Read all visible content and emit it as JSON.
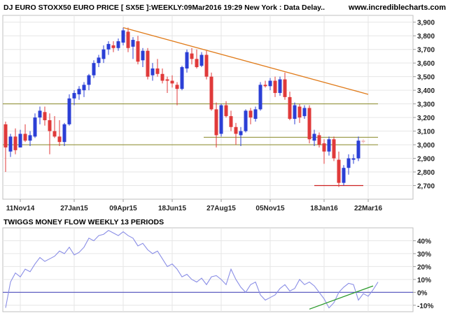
{
  "header": {
    "title": "DJ EURO STOXX50 EURO PRICE [ SX5E ]:WEEKLY:09Mar2016 19:29 New York : Data Delay..",
    "site": "www.incrediblecharts.com"
  },
  "colors": {
    "up": "#2b3fd6",
    "down": "#e03a3a",
    "trendline": "#e07b1a",
    "horizontal": "#8a8a28",
    "low_line": "#cc2020",
    "indicator": "#8a8ee6",
    "indicator_trend": "#2a9a2a",
    "grid": "#e6e6e6",
    "axis_text": "#222222"
  },
  "chart_data": [
    {
      "type": "candlestick",
      "title": "DJ EURO STOXX50 EURO PRICE [ SX5E ]:WEEKLY:09Mar2016 19:29 New York : Data Delay..",
      "ylim": [
        2600,
        3950
      ],
      "y_ticks": [
        "2,700",
        "2,800",
        "2,900",
        "3,000",
        "3,100",
        "3,200",
        "3,300",
        "3,400",
        "3,500",
        "3,600",
        "3,700",
        "3,800",
        "3,900"
      ],
      "y_tick_values": [
        2700,
        2800,
        2900,
        3000,
        3100,
        3200,
        3300,
        3400,
        3500,
        3600,
        3700,
        3800,
        3900
      ],
      "x_ticks": [
        "11Nov14",
        "27Jan15",
        "09Apr15",
        "18Jun15",
        "27Aug15",
        "05Nov15",
        "18Jan16",
        "22Mar16"
      ],
      "x_tick_week_index": [
        3,
        14,
        24,
        34,
        44,
        54,
        65,
        74
      ],
      "grid": true,
      "candles": [
        {
          "o": 3150,
          "h": 3170,
          "l": 2800,
          "c": 2980
        },
        {
          "o": 2950,
          "h": 3080,
          "l": 2910,
          "c": 3060
        },
        {
          "o": 3060,
          "h": 3120,
          "l": 2930,
          "c": 2960
        },
        {
          "o": 2980,
          "h": 3110,
          "l": 2980,
          "c": 3080
        },
        {
          "o": 3080,
          "h": 3150,
          "l": 3020,
          "c": 3030
        },
        {
          "o": 3030,
          "h": 3100,
          "l": 2990,
          "c": 3070
        },
        {
          "o": 3060,
          "h": 3230,
          "l": 3050,
          "c": 3200
        },
        {
          "o": 3200,
          "h": 3280,
          "l": 3150,
          "c": 3250
        },
        {
          "o": 3240,
          "h": 3280,
          "l": 3140,
          "c": 3180
        },
        {
          "o": 3180,
          "h": 3230,
          "l": 2930,
          "c": 3100
        },
        {
          "o": 3100,
          "h": 3210,
          "l": 3050,
          "c": 3060
        },
        {
          "o": 3060,
          "h": 3180,
          "l": 2990,
          "c": 3020
        },
        {
          "o": 3020,
          "h": 3160,
          "l": 2990,
          "c": 3150
        },
        {
          "o": 3150,
          "h": 3370,
          "l": 3140,
          "c": 3340
        },
        {
          "o": 3340,
          "h": 3400,
          "l": 3290,
          "c": 3380
        },
        {
          "o": 3370,
          "h": 3430,
          "l": 3330,
          "c": 3410
        },
        {
          "o": 3400,
          "h": 3460,
          "l": 3350,
          "c": 3440
        },
        {
          "o": 3440,
          "h": 3520,
          "l": 3400,
          "c": 3510
        },
        {
          "o": 3510,
          "h": 3620,
          "l": 3490,
          "c": 3600
        },
        {
          "o": 3600,
          "h": 3660,
          "l": 3570,
          "c": 3640
        },
        {
          "o": 3630,
          "h": 3730,
          "l": 3600,
          "c": 3700
        },
        {
          "o": 3700,
          "h": 3760,
          "l": 3660,
          "c": 3740
        },
        {
          "o": 3730,
          "h": 3760,
          "l": 3680,
          "c": 3710
        },
        {
          "o": 3710,
          "h": 3780,
          "l": 3690,
          "c": 3760
        },
        {
          "o": 3750,
          "h": 3860,
          "l": 3730,
          "c": 3840
        },
        {
          "o": 3830,
          "h": 3860,
          "l": 3680,
          "c": 3710
        },
        {
          "o": 3720,
          "h": 3790,
          "l": 3630,
          "c": 3770
        },
        {
          "o": 3760,
          "h": 3800,
          "l": 3590,
          "c": 3610
        },
        {
          "o": 3620,
          "h": 3710,
          "l": 3570,
          "c": 3690
        },
        {
          "o": 3690,
          "h": 3710,
          "l": 3480,
          "c": 3500
        },
        {
          "o": 3510,
          "h": 3600,
          "l": 3470,
          "c": 3560
        },
        {
          "o": 3560,
          "h": 3630,
          "l": 3500,
          "c": 3520
        },
        {
          "o": 3520,
          "h": 3560,
          "l": 3450,
          "c": 3470
        },
        {
          "o": 3480,
          "h": 3500,
          "l": 3380,
          "c": 3470
        },
        {
          "o": 3470,
          "h": 3510,
          "l": 3420,
          "c": 3450
        },
        {
          "o": 3440,
          "h": 3460,
          "l": 3290,
          "c": 3410
        },
        {
          "o": 3410,
          "h": 3580,
          "l": 3400,
          "c": 3570
        },
        {
          "o": 3560,
          "h": 3700,
          "l": 3530,
          "c": 3680
        },
        {
          "o": 3670,
          "h": 3710,
          "l": 3590,
          "c": 3630
        },
        {
          "o": 3630,
          "h": 3700,
          "l": 3560,
          "c": 3570
        },
        {
          "o": 3580,
          "h": 3680,
          "l": 3570,
          "c": 3660
        },
        {
          "o": 3660,
          "h": 3690,
          "l": 3480,
          "c": 3500
        },
        {
          "o": 3500,
          "h": 3530,
          "l": 3250,
          "c": 3260
        },
        {
          "o": 3260,
          "h": 3310,
          "l": 2980,
          "c": 3070
        },
        {
          "o": 3080,
          "h": 3300,
          "l": 3060,
          "c": 3290
        },
        {
          "o": 3290,
          "h": 3320,
          "l": 3200,
          "c": 3210
        },
        {
          "o": 3210,
          "h": 3250,
          "l": 3100,
          "c": 3130
        },
        {
          "o": 3130,
          "h": 3160,
          "l": 3000,
          "c": 3080
        },
        {
          "o": 3070,
          "h": 3130,
          "l": 2990,
          "c": 3100
        },
        {
          "o": 3100,
          "h": 3260,
          "l": 3090,
          "c": 3250
        },
        {
          "o": 3250,
          "h": 3270,
          "l": 3150,
          "c": 3200
        },
        {
          "o": 3190,
          "h": 3280,
          "l": 3170,
          "c": 3260
        },
        {
          "o": 3260,
          "h": 3460,
          "l": 3250,
          "c": 3440
        },
        {
          "o": 3440,
          "h": 3470,
          "l": 3420,
          "c": 3430
        },
        {
          "o": 3430,
          "h": 3490,
          "l": 3400,
          "c": 3470
        },
        {
          "o": 3470,
          "h": 3500,
          "l": 3350,
          "c": 3380
        },
        {
          "o": 3380,
          "h": 3500,
          "l": 3360,
          "c": 3480
        },
        {
          "o": 3480,
          "h": 3530,
          "l": 3330,
          "c": 3350
        },
        {
          "o": 3350,
          "h": 3390,
          "l": 3180,
          "c": 3190
        },
        {
          "o": 3190,
          "h": 3310,
          "l": 3150,
          "c": 3290
        },
        {
          "o": 3280,
          "h": 3300,
          "l": 3160,
          "c": 3200
        },
        {
          "o": 3210,
          "h": 3290,
          "l": 3190,
          "c": 3270
        },
        {
          "o": 3270,
          "h": 3290,
          "l": 3010,
          "c": 3040
        },
        {
          "o": 3030,
          "h": 3110,
          "l": 2990,
          "c": 3080
        },
        {
          "o": 3070,
          "h": 3090,
          "l": 2980,
          "c": 3000
        },
        {
          "o": 3010,
          "h": 3040,
          "l": 2860,
          "c": 2950
        },
        {
          "o": 2950,
          "h": 3060,
          "l": 2920,
          "c": 3040
        },
        {
          "o": 3040,
          "h": 3060,
          "l": 2880,
          "c": 2900
        },
        {
          "o": 2890,
          "h": 2950,
          "l": 2690,
          "c": 2720
        },
        {
          "o": 2720,
          "h": 2850,
          "l": 2700,
          "c": 2830
        },
        {
          "o": 2830,
          "h": 2930,
          "l": 2780,
          "c": 2900
        },
        {
          "o": 2890,
          "h": 2930,
          "l": 2860,
          "c": 2900
        },
        {
          "o": 2900,
          "h": 3060,
          "l": 2880,
          "c": 3030
        },
        {
          "o": 3020,
          "h": 3040,
          "l": 3010,
          "c": 3030,
          "faint": true
        }
      ],
      "trendline": {
        "from_week": 24,
        "from_value": 3860,
        "to_week": 74,
        "to_value": 3370
      },
      "horizontal_lines": [
        {
          "value": 3300,
          "from_week": 0,
          "to_week": 76
        },
        {
          "value": 3000,
          "from_week": 0,
          "to_week": 76
        },
        {
          "value": 3055,
          "from_week": 41,
          "to_week": 76
        }
      ],
      "low_line": {
        "value": 2700,
        "from_week": 63,
        "to_week": 73
      }
    },
    {
      "type": "line",
      "title": "TWIGGS MONEY FLOW WEEKLY 13 PERIODS",
      "ylim": [
        -15,
        50
      ],
      "y_ticks": [
        "-10%",
        "0%",
        "10%",
        "20%",
        "30%",
        "40%"
      ],
      "y_tick_values": [
        -10,
        0,
        10,
        20,
        30,
        40
      ],
      "grid": true,
      "zero_line": true,
      "values": [
        -12,
        8,
        15,
        12,
        18,
        16,
        22,
        27,
        24,
        26,
        28,
        32,
        30,
        35,
        29,
        31,
        35,
        42,
        40,
        44,
        45,
        48,
        46,
        44,
        47,
        44,
        42,
        36,
        38,
        33,
        30,
        32,
        26,
        20,
        22,
        18,
        12,
        14,
        10,
        8,
        11,
        6,
        12,
        13,
        10,
        6,
        18,
        10,
        4,
        0,
        6,
        8,
        -2,
        -6,
        -4,
        -2,
        3,
        6,
        1,
        3,
        10,
        6,
        8,
        5,
        0,
        -5,
        -12,
        -8,
        0,
        4,
        7,
        6,
        -6,
        -1,
        -3,
        2,
        8
      ],
      "trendline": {
        "from_week": 62,
        "from_value": -13,
        "to_week": 75,
        "to_value": 5
      }
    }
  ]
}
